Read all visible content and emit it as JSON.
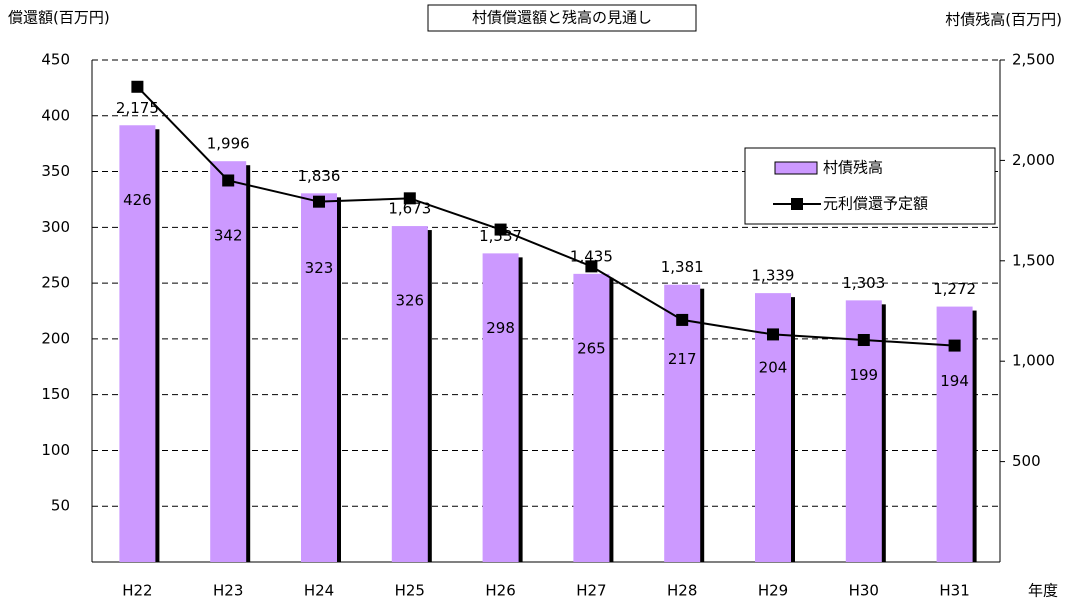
{
  "chart_data": {
    "type": "bar_line",
    "title": "村債償還額と残高の見通し",
    "y_label": "償還額(百万円)",
    "y2_label": "村債残高(百万円)",
    "x_label": "年度",
    "categories": [
      "H22",
      "H23",
      "H24",
      "H25",
      "H26",
      "H27",
      "H28",
      "H29",
      "H30",
      "H31"
    ],
    "series": [
      {
        "name": "村債残高",
        "type": "bar",
        "axis": "y2",
        "color": "#cc99ff",
        "values": [
          2175,
          1996,
          1836,
          1673,
          1537,
          1435,
          1381,
          1339,
          1303,
          1272
        ],
        "value_labels": [
          "2,175",
          "1,996",
          "1,836",
          "1,673",
          "1,537",
          "1,435",
          "1,381",
          "1,339",
          "1,303",
          "1,272"
        ]
      },
      {
        "name": "元利償還予定額",
        "type": "line",
        "axis": "y",
        "color": "#000000",
        "values": [
          426,
          342,
          323,
          326,
          298,
          265,
          217,
          204,
          199,
          194
        ]
      }
    ],
    "ylim": [
      0,
      450
    ],
    "yticks": [
      50,
      100,
      150,
      200,
      250,
      300,
      350,
      400,
      450
    ],
    "y2lim": [
      0,
      2500
    ],
    "y2ticks": [
      {
        "value": 500,
        "label": "500"
      },
      {
        "value": 1000,
        "label": "1,000"
      },
      {
        "value": 1500,
        "label": "1,500"
      },
      {
        "value": 2000,
        "label": "2,000"
      },
      {
        "value": 2500,
        "label": "2,500"
      }
    ],
    "grid": true,
    "legend": "upper right"
  }
}
